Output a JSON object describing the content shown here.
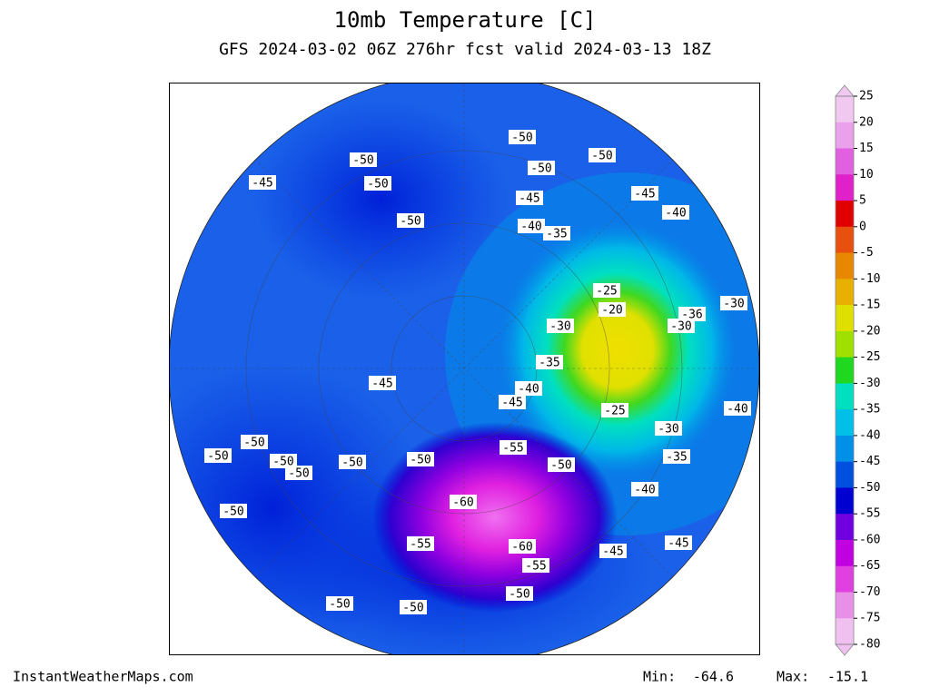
{
  "header": {
    "title": "10mb Temperature [C]",
    "subtitle": "GFS 2024-03-02 06Z 276hr fcst valid 2024-03-13 18Z"
  },
  "map": {
    "contour_labels": [
      -50,
      -50,
      -50,
      -50,
      -45,
      -50,
      -45,
      -45,
      -50,
      -40,
      -35,
      -40,
      -25,
      -20,
      -30,
      -30,
      -36,
      -30,
      -35,
      -45,
      -40,
      -45,
      -25,
      -40,
      -30,
      -50,
      -55,
      -50,
      -50,
      -50,
      -50,
      -50,
      -50,
      -35,
      -60,
      -40,
      -50,
      -55,
      -60,
      -45,
      -45,
      -55,
      -50,
      -50,
      -50
    ]
  },
  "colorbar": {
    "ticks": [
      25,
      20,
      15,
      10,
      5,
      0,
      -5,
      -10,
      -15,
      -20,
      -25,
      -30,
      -35,
      -40,
      -45,
      -50,
      -55,
      -60,
      -65,
      -70,
      -75,
      -80
    ],
    "colors": [
      "#f0c8f0",
      "#eaa0ea",
      "#e060e0",
      "#e020c8",
      "#e00000",
      "#e85010",
      "#e88800",
      "#e8b000",
      "#e0e000",
      "#a0e000",
      "#20d820",
      "#00e0c0",
      "#00c0e8",
      "#0090e8",
      "#0050e0",
      "#0000d0",
      "#7000e0",
      "#c000e0",
      "#e040e0",
      "#e890e8",
      "#f0c0f0"
    ]
  },
  "footer": {
    "credit": "InstantWeatherMaps.com",
    "min_label": "Min:",
    "min": -64.6,
    "max_label": "Max:",
    "max": -15.1
  }
}
